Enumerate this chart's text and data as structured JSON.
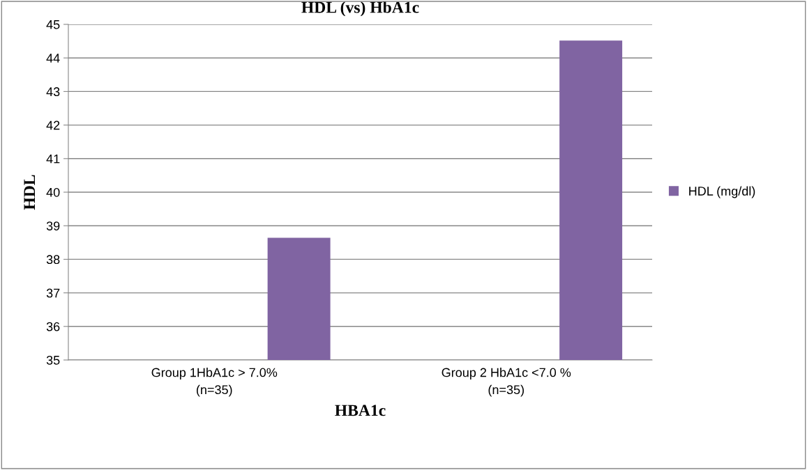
{
  "chart_data": {
    "type": "bar",
    "title": "HDL (vs) HbA1c",
    "xlabel": "HBA1c",
    "ylabel": "HDL",
    "categories": [
      "Group 1HbA1c > 7.0%\n(n=35)",
      "Group 2 HbA1c <7.0 %\n(n=35)"
    ],
    "series": [
      {
        "name": "HDL (mg/dl)",
        "color": "#8064a2",
        "values": [
          38.64,
          44.52
        ]
      }
    ],
    "ylim": [
      35,
      45
    ],
    "yticks": [
      35,
      36,
      37,
      38,
      39,
      40,
      41,
      42,
      43,
      44,
      45
    ],
    "grid": "y",
    "legend": "right"
  }
}
